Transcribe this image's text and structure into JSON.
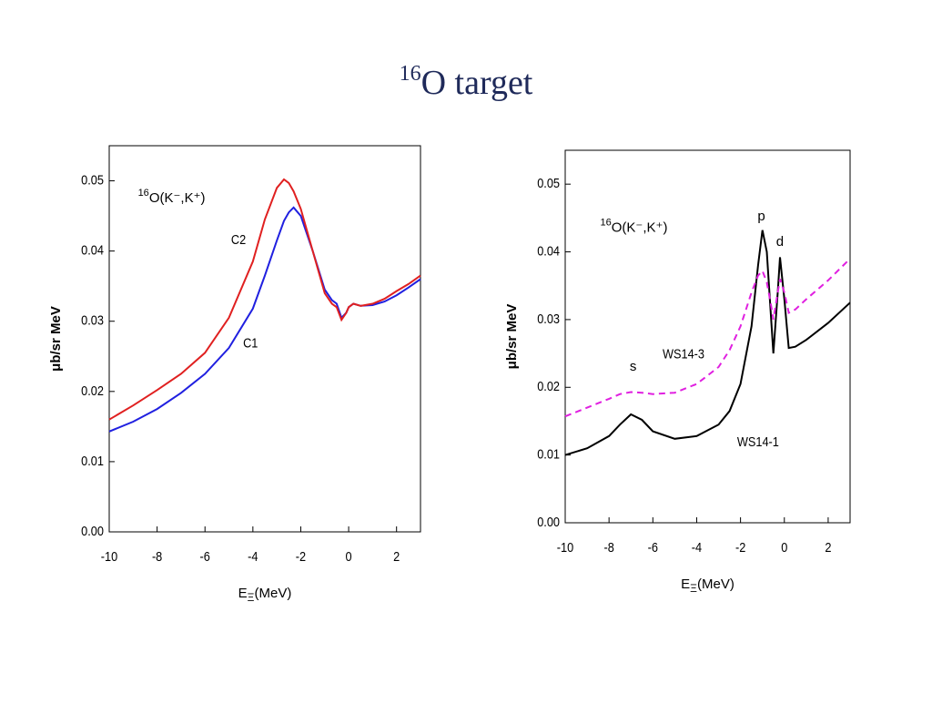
{
  "title_superscript": "16",
  "title": "O target",
  "chart_data": [
    {
      "type": "line",
      "reaction_mass_number": "16",
      "reaction": "O(K⁻,K⁺)",
      "ylabel": "μb/sr MeV",
      "xlabel_base": "E",
      "xlabel_sub": "Ξ",
      "xlabel_unit": "(MeV)",
      "xlim": [
        -10,
        3
      ],
      "xticks": [
        -10,
        -8,
        -6,
        -4,
        -2,
        0,
        2
      ],
      "ylim": [
        0,
        0.055
      ],
      "yticks": [
        {
          "value": 0,
          "label": "0.00"
        },
        0.01,
        0.02,
        0.03,
        0.04,
        0.05
      ],
      "x": [
        -10,
        -9,
        -8,
        -7,
        -6,
        -5,
        -4,
        -3.5,
        -3,
        -2.7,
        -2.5,
        -2.3,
        -2,
        -1.5,
        -1,
        -0.7,
        -0.5,
        -0.3,
        -0.1,
        0,
        0.2,
        0.5,
        1,
        1.5,
        2,
        2.5,
        3
      ],
      "series": [
        {
          "name": "C1",
          "color": "#2020e0",
          "linestyle": "solid",
          "values": [
            0.0143,
            0.0157,
            0.0175,
            0.0198,
            0.0225,
            0.0262,
            0.0318,
            0.0365,
            0.0415,
            0.0443,
            0.0455,
            0.0462,
            0.045,
            0.04,
            0.0345,
            0.033,
            0.0325,
            0.0305,
            0.0312,
            0.032,
            0.0325,
            0.0322,
            0.0323,
            0.0328,
            0.0337,
            0.0348,
            0.036
          ]
        },
        {
          "name": "C2",
          "color": "#e02020",
          "linestyle": "solid",
          "values": [
            0.016,
            0.018,
            0.0202,
            0.0225,
            0.0255,
            0.0305,
            0.0385,
            0.0445,
            0.049,
            0.0502,
            0.0497,
            0.0485,
            0.046,
            0.04,
            0.034,
            0.0325,
            0.032,
            0.0302,
            0.0312,
            0.032,
            0.0325,
            0.0322,
            0.0325,
            0.0332,
            0.0343,
            0.0353,
            0.0365
          ]
        }
      ],
      "annotations": []
    },
    {
      "type": "line",
      "reaction_mass_number": "16",
      "reaction": "O(K⁻,K⁺)",
      "ylabel": "μb/sr MeV",
      "xlabel_base": "E",
      "xlabel_sub": "Ξ",
      "xlabel_unit": "(MeV)",
      "xlim": [
        -10,
        3
      ],
      "xticks": [
        -10,
        -8,
        -6,
        -4,
        -2,
        0,
        2
      ],
      "ylim": [
        0,
        0.055
      ],
      "yticks": [
        {
          "value": 0,
          "label": "0.00"
        },
        0.01,
        0.02,
        0.03,
        0.04,
        0.05
      ],
      "x": [
        -10,
        -9,
        -8,
        -7.5,
        -7,
        -6.5,
        -6,
        -5,
        -4,
        -3,
        -2.5,
        -2,
        -1.5,
        -1.2,
        -1,
        -0.8,
        -0.6,
        -0.5,
        -0.3,
        -0.2,
        0,
        0.2,
        0.5,
        1,
        2,
        3
      ],
      "series": [
        {
          "name": "WS14-1",
          "color": "#000000",
          "linestyle": "solid",
          "values": [
            0.01,
            0.011,
            0.0128,
            0.0145,
            0.016,
            0.0152,
            0.0135,
            0.0124,
            0.0128,
            0.0145,
            0.0165,
            0.0205,
            0.029,
            0.038,
            0.0432,
            0.04,
            0.03,
            0.025,
            0.034,
            0.0392,
            0.033,
            0.0258,
            0.026,
            0.027,
            0.0295,
            0.0325
          ]
        },
        {
          "name": "WS14-3",
          "color": "#e020e0",
          "linestyle": "dashed",
          "values": [
            0.0157,
            0.017,
            0.0183,
            0.019,
            0.0193,
            0.0192,
            0.019,
            0.0192,
            0.0205,
            0.023,
            0.0255,
            0.029,
            0.034,
            0.0365,
            0.0372,
            0.0355,
            0.032,
            0.03,
            0.034,
            0.036,
            0.034,
            0.031,
            0.0315,
            0.033,
            0.0358,
            0.039
          ]
        }
      ],
      "annotations": [
        "s",
        "p",
        "d"
      ]
    }
  ]
}
